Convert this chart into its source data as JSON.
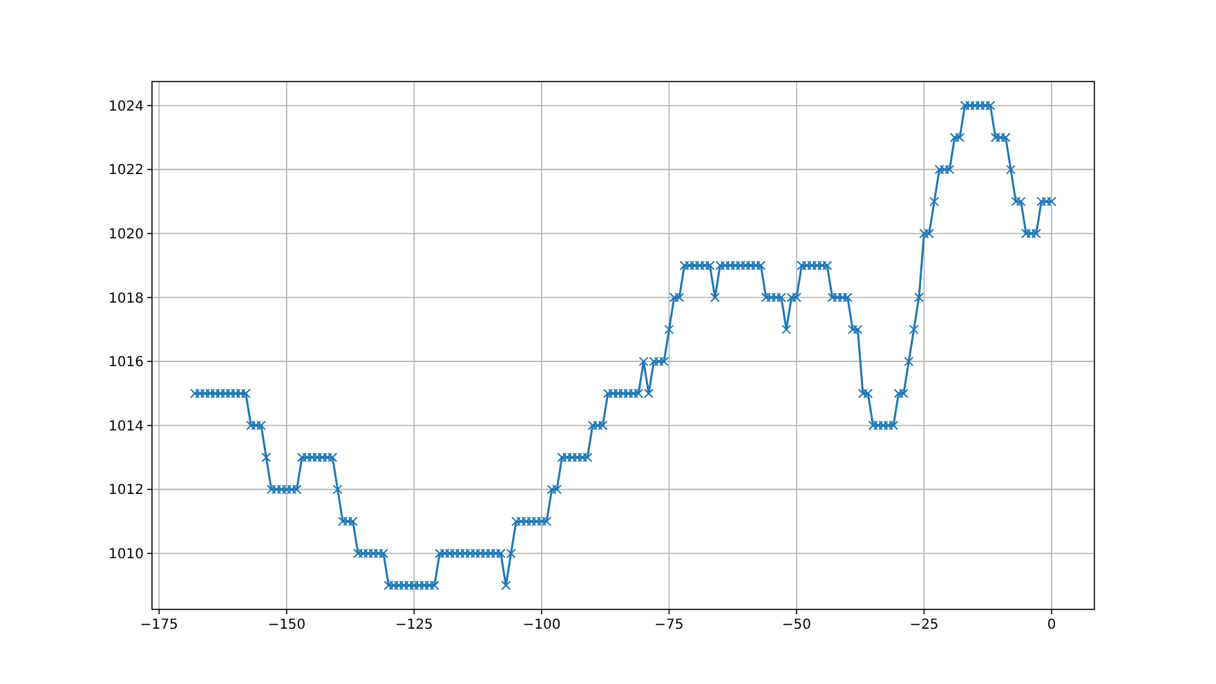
{
  "chart_data": {
    "type": "line",
    "x": [
      -168,
      -167,
      -166,
      -165,
      -164,
      -163,
      -162,
      -161,
      -160,
      -159,
      -158,
      -157,
      -156,
      -155,
      -154,
      -153,
      -152,
      -151,
      -150,
      -149,
      -148,
      -147,
      -146,
      -145,
      -144,
      -143,
      -142,
      -141,
      -140,
      -139,
      -138,
      -137,
      -136,
      -135,
      -134,
      -133,
      -132,
      -131,
      -130,
      -129,
      -128,
      -127,
      -126,
      -125,
      -124,
      -123,
      -122,
      -121,
      -120,
      -119,
      -118,
      -117,
      -116,
      -115,
      -114,
      -113,
      -112,
      -111,
      -110,
      -109,
      -108,
      -107,
      -106,
      -105,
      -104,
      -103,
      -102,
      -101,
      -100,
      -99,
      -98,
      -97,
      -96,
      -95,
      -94,
      -93,
      -92,
      -91,
      -90,
      -89,
      -88,
      -87,
      -86,
      -85,
      -84,
      -83,
      -82,
      -81,
      -80,
      -79,
      -78,
      -77,
      -76,
      -75,
      -74,
      -73,
      -72,
      -71,
      -70,
      -69,
      -68,
      -67,
      -66,
      -65,
      -64,
      -63,
      -62,
      -61,
      -60,
      -59,
      -58,
      -57,
      -56,
      -55,
      -54,
      -53,
      -52,
      -51,
      -50,
      -49,
      -48,
      -47,
      -46,
      -45,
      -44,
      -43,
      -42,
      -41,
      -40,
      -39,
      -38,
      -37,
      -36,
      -35,
      -34,
      -33,
      -32,
      -31,
      -30,
      -29,
      -28,
      -27,
      -26,
      -25,
      -24,
      -23,
      -22,
      -21,
      -20,
      -19,
      -18,
      -17,
      -16,
      -15,
      -14,
      -13,
      -12,
      -11,
      -10,
      -9,
      -8,
      -7,
      -6,
      -5,
      -4,
      -3,
      -2,
      -1,
      0
    ],
    "series": [
      {
        "color": "#1f77b4",
        "values": [
          1015,
          1015,
          1015,
          1015,
          1015,
          1015,
          1015,
          1015,
          1015,
          1015,
          1015,
          1014,
          1014,
          1014,
          1013,
          1012,
          1012,
          1012,
          1012,
          1012,
          1012,
          1013,
          1013,
          1013,
          1013,
          1013,
          1013,
          1013,
          1012,
          1011,
          1011,
          1011,
          1010,
          1010,
          1010,
          1010,
          1010,
          1010,
          1009,
          1009,
          1009,
          1009,
          1009,
          1009,
          1009,
          1009,
          1009,
          1009,
          1010,
          1010,
          1010,
          1010,
          1010,
          1010,
          1010,
          1010,
          1010,
          1010,
          1010,
          1010,
          1010,
          1009,
          1010,
          1011,
          1011,
          1011,
          1011,
          1011,
          1011,
          1011,
          1012,
          1012,
          1013,
          1013,
          1013,
          1013,
          1013,
          1013,
          1014,
          1014,
          1014,
          1015,
          1015,
          1015,
          1015,
          1015,
          1015,
          1015,
          1016,
          1015,
          1016,
          1016,
          1016,
          1017,
          1018,
          1018,
          1019,
          1019,
          1019,
          1019,
          1019,
          1019,
          1018,
          1019,
          1019,
          1019,
          1019,
          1019,
          1019,
          1019,
          1019,
          1019,
          1018,
          1018,
          1018,
          1018,
          1017,
          1018,
          1018,
          1019,
          1019,
          1019,
          1019,
          1019,
          1019,
          1018,
          1018,
          1018,
          1018,
          1017,
          1017,
          1015,
          1015,
          1014,
          1014,
          1014,
          1014,
          1014,
          1015,
          1015,
          1016,
          1017,
          1018,
          1020,
          1020,
          1021,
          1022,
          1022,
          1022,
          1023,
          1023,
          1024,
          1024,
          1024,
          1024,
          1024,
          1024,
          1023,
          1023,
          1023,
          1022,
          1021,
          1021,
          1020,
          1020,
          1020,
          1021,
          1021,
          1021
        ]
      }
    ],
    "xlim": [
      -176.4,
      8.4
    ],
    "xticks": [
      {
        "value": -175,
        "label": "−175"
      },
      {
        "value": -150,
        "label": "−150"
      },
      {
        "value": -125,
        "label": "−125"
      },
      {
        "value": -100,
        "label": "−100"
      },
      {
        "value": -75,
        "label": "−75"
      },
      {
        "value": -50,
        "label": "−50"
      },
      {
        "value": -25,
        "label": "−25"
      },
      0
    ],
    "ylim": [
      1008.25,
      1024.75
    ],
    "yticks": [
      1010,
      1012,
      1014,
      1016,
      1018,
      1020,
      1022,
      1024
    ],
    "grid": true,
    "marker": "cross",
    "line_style": "solid"
  }
}
